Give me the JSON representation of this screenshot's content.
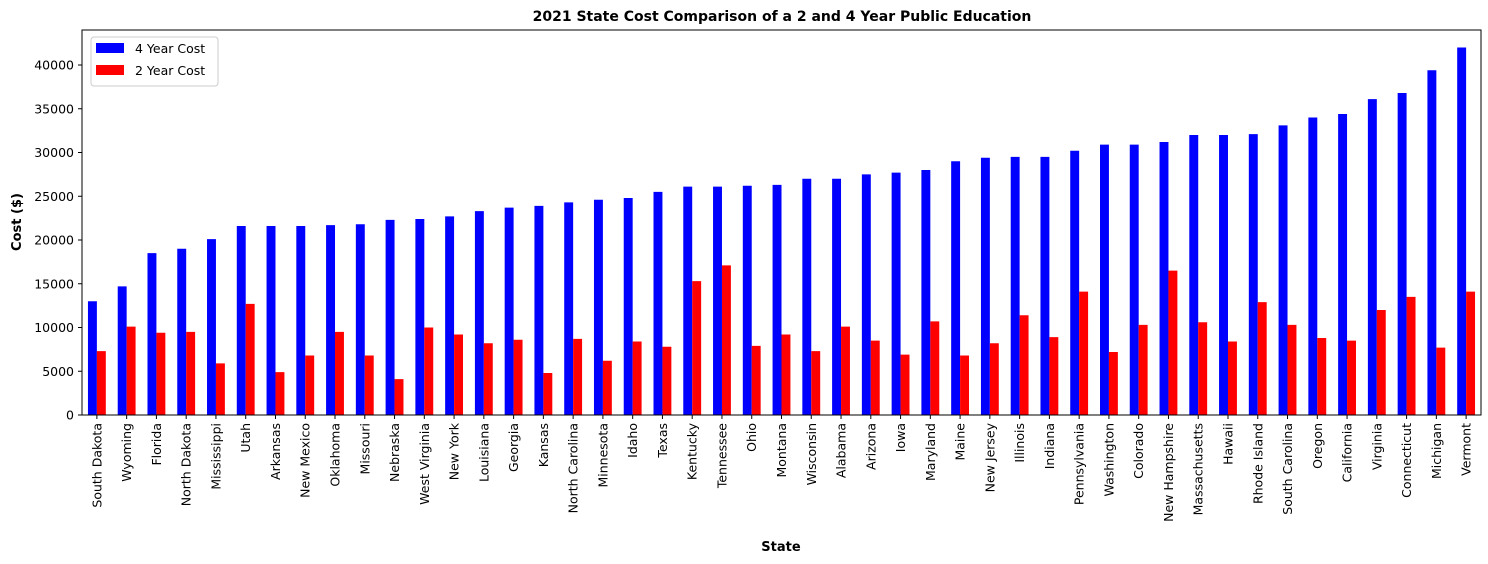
{
  "chart_data": {
    "type": "bar",
    "title": "2021 State Cost Comparison of a 2 and 4 Year Public Education",
    "xlabel": "State",
    "ylabel": "Cost ($)",
    "ylim": [
      0,
      44000
    ],
    "yticks": [
      0,
      5000,
      10000,
      15000,
      20000,
      25000,
      30000,
      35000,
      40000
    ],
    "legend_position": "top-left",
    "grid": false,
    "categories": [
      "South Dakota",
      "Wyoming",
      "Florida",
      "North Dakota",
      "Mississippi",
      "Utah",
      "Arkansas",
      "New Mexico",
      "Oklahoma",
      "Missouri",
      "Nebraska",
      "West Virginia",
      "New York",
      "Louisiana",
      "Georgia",
      "Kansas",
      "North Carolina",
      "Minnesota",
      "Idaho",
      "Texas",
      "Kentucky",
      "Tennessee",
      "Ohio",
      "Montana",
      "Wisconsin",
      "Alabama",
      "Arizona",
      "Iowa",
      "Maryland",
      "Maine",
      "New Jersey",
      "Illinois",
      "Indiana",
      "Pennsylvania",
      "Washington",
      "Colorado",
      "New Hampshire",
      "Massachusetts",
      "Hawaii",
      "Rhode Island",
      "South Carolina",
      "Oregon",
      "California",
      "Virginia",
      "Connecticut",
      "Michigan",
      "Vermont"
    ],
    "series": [
      {
        "name": "4 Year Cost",
        "color": "#0000ff",
        "values": [
          13000,
          14700,
          18500,
          19000,
          20100,
          21600,
          21600,
          21600,
          21700,
          21800,
          22300,
          22400,
          22700,
          23300,
          23700,
          23900,
          24300,
          24600,
          24800,
          25500,
          26100,
          26100,
          26200,
          26300,
          27000,
          27000,
          27500,
          27700,
          28000,
          29000,
          29400,
          29500,
          29500,
          30200,
          30900,
          30900,
          31200,
          32000,
          32000,
          32100,
          33100,
          34000,
          34400,
          36100,
          36800,
          39400,
          42000
        ]
      },
      {
        "name": "2 Year Cost",
        "color": "#ff0000",
        "values": [
          7300,
          10100,
          9400,
          9500,
          5900,
          12700,
          4900,
          6800,
          9500,
          6800,
          4100,
          10000,
          9200,
          8200,
          8600,
          4800,
          8700,
          6200,
          8400,
          7800,
          15300,
          17100,
          7900,
          9200,
          7300,
          10100,
          8500,
          6900,
          10700,
          6800,
          8200,
          11400,
          8900,
          14100,
          7200,
          10300,
          16500,
          10600,
          8400,
          12900,
          10300,
          8800,
          8500,
          12000,
          13500,
          7700,
          14100
        ]
      }
    ]
  }
}
